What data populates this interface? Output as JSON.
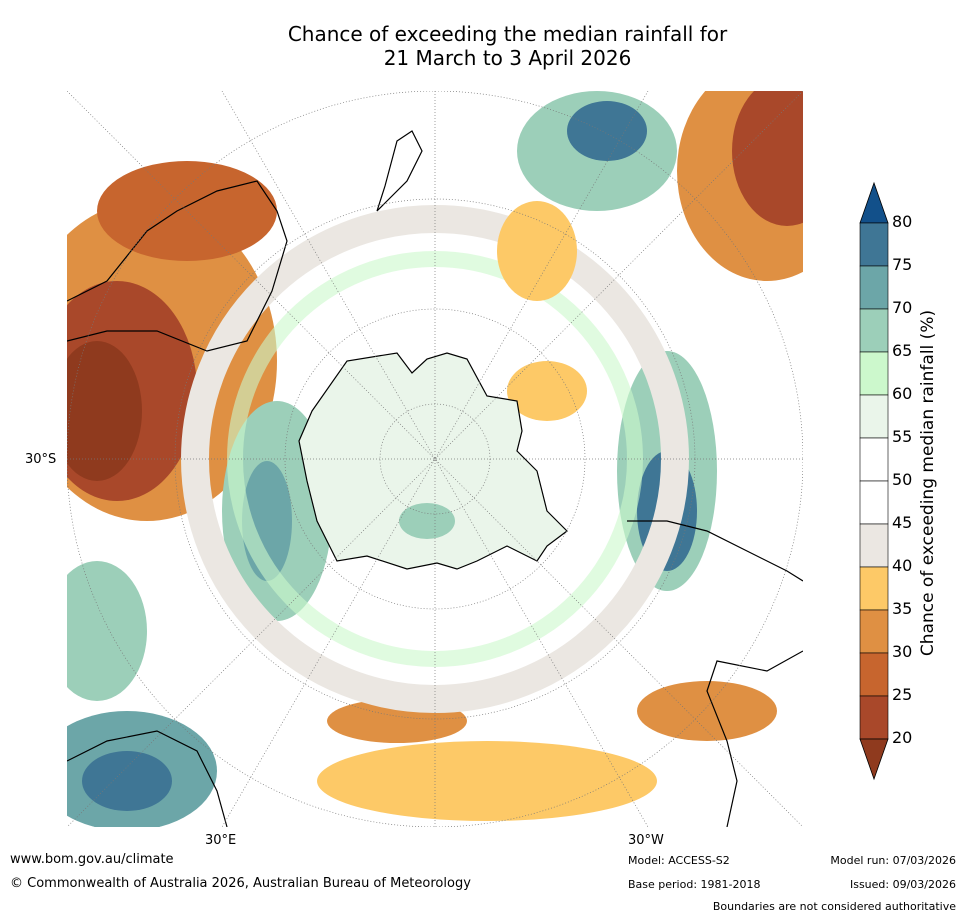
{
  "title": {
    "line1": "Chance of exceeding the median rainfall for",
    "line2": "21 March to 3 April 2026"
  },
  "map": {
    "projection": "south polar stereographic",
    "lat_label": "30°S",
    "lon_labels": {
      "east": "30°E",
      "west": "30°W"
    }
  },
  "colorbar": {
    "label": "Chance of exceeding median rainfall (%)",
    "ticks": [
      "20",
      "25",
      "30",
      "35",
      "40",
      "45",
      "50",
      "55",
      "60",
      "65",
      "70",
      "75",
      "80"
    ],
    "colors": [
      "#8f3a1e",
      "#a9482a",
      "#c7652e",
      "#df9043",
      "#fdc967",
      "#ebe7e2",
      "#ffffff",
      "#ffffff",
      "#eaf5ea",
      "#ccf8cc",
      "#9ccfb9",
      "#6ca6a8",
      "#3f7695",
      "#12508a"
    ]
  },
  "footer": {
    "website": "www.bom.gov.au/climate",
    "copyright": "© Commonwealth of Australia 2026, Australian Bureau of Meteorology",
    "model": "Model: ACCESS-S2",
    "base_period": "Base period: 1981-2018",
    "model_run": "Model run: 07/03/2026",
    "issued": "Issued: 09/03/2026",
    "disclaimer": "Boundaries are not considered authoritative"
  }
}
